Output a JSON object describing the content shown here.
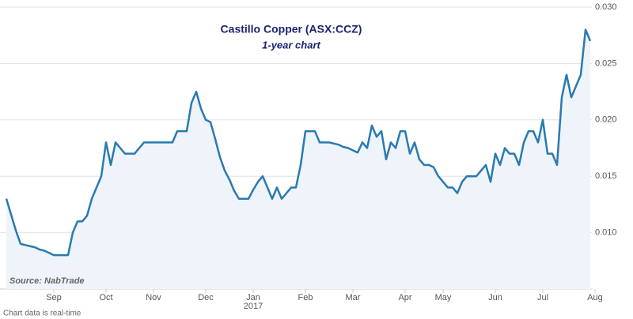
{
  "chart_data": {
    "type": "line",
    "title": "Castillo Copper (ASX:CCZ)",
    "subtitle": "1-year chart",
    "source": "Source: NabTrade",
    "footer": "Chart data is real-time",
    "year_label": "2017",
    "color": "#2a7ab0",
    "area_color": "#eef4fa",
    "grid": true,
    "categories": [
      null,
      null,
      null,
      null,
      null,
      null,
      null,
      null,
      null,
      null,
      "Sep",
      null,
      null,
      null,
      null,
      null,
      null,
      null,
      null,
      null,
      null,
      "Oct",
      null,
      null,
      null,
      null,
      null,
      null,
      null,
      null,
      null,
      "Nov",
      null,
      null,
      null,
      null,
      null,
      null,
      null,
      null,
      null,
      null,
      "Dec",
      null,
      null,
      null,
      null,
      null,
      null,
      null,
      null,
      null,
      "Jan",
      null,
      null,
      null,
      null,
      null,
      null,
      null,
      null,
      null,
      null,
      "Feb",
      null,
      null,
      null,
      null,
      null,
      null,
      null,
      null,
      null,
      "Mar",
      null,
      null,
      null,
      null,
      null,
      null,
      null,
      null,
      null,
      null,
      "Apr",
      null,
      null,
      null,
      null,
      null,
      null,
      null,
      "May",
      null,
      null,
      null,
      null,
      null,
      null,
      null,
      null,
      null,
      null,
      "Jun",
      null,
      null,
      null,
      null,
      null,
      null,
      null,
      null,
      null,
      "Jul",
      null,
      null,
      null,
      null,
      null,
      null,
      null,
      null,
      null,
      null,
      "Aug"
    ],
    "values": [
      0.013,
      0.0116,
      0.0102,
      0.009,
      0.0089,
      0.0088,
      0.0087,
      0.0085,
      0.0084,
      0.0082,
      0.008,
      0.008,
      0.008,
      0.008,
      0.01,
      0.011,
      0.011,
      0.0115,
      0.013,
      0.014,
      0.015,
      0.018,
      0.016,
      0.018,
      0.0175,
      0.017,
      0.017,
      0.017,
      0.0175,
      0.018,
      0.018,
      0.018,
      0.018,
      0.018,
      0.018,
      0.018,
      0.019,
      0.019,
      0.019,
      0.0215,
      0.0225,
      0.021,
      0.02,
      0.0198,
      0.0183,
      0.0167,
      0.0155,
      0.0147,
      0.0137,
      0.013,
      0.013,
      0.013,
      0.0138,
      0.0145,
      0.015,
      0.014,
      0.013,
      0.014,
      0.013,
      0.0135,
      0.014,
      0.014,
      0.016,
      0.019,
      0.019,
      0.019,
      0.018,
      0.018,
      0.018,
      0.0179,
      0.0178,
      0.0176,
      0.0175,
      0.0173,
      0.0171,
      0.018,
      0.0175,
      0.0195,
      0.0185,
      0.019,
      0.0165,
      0.018,
      0.0175,
      0.019,
      0.019,
      0.017,
      0.018,
      0.0165,
      0.016,
      0.016,
      0.0158,
      0.015,
      0.0145,
      0.014,
      0.014,
      0.0135,
      0.0145,
      0.015,
      0.015,
      0.015,
      0.0155,
      0.016,
      0.0145,
      0.017,
      0.016,
      0.0175,
      0.017,
      0.017,
      0.016,
      0.018,
      0.019,
      0.019,
      0.018,
      0.02,
      0.017,
      0.017,
      0.016,
      0.022,
      0.024,
      0.022,
      0.023,
      0.024,
      0.028,
      0.027,
      null
    ],
    "ylim": [
      0.005,
      0.03
    ],
    "yticks": [
      {
        "value": 0.01,
        "label": "0.010"
      },
      0.015,
      {
        "value": 0.02,
        "label": "0.020"
      },
      0.025,
      {
        "value": 0.03,
        "label": "0.030"
      }
    ]
  }
}
